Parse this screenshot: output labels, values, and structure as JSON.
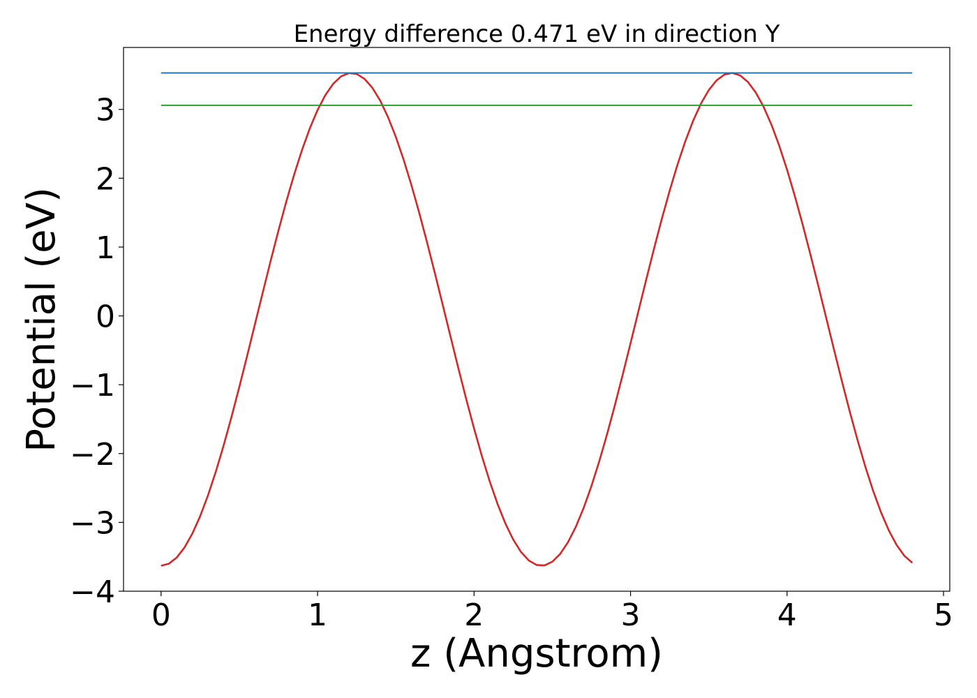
{
  "chart_data": {
    "type": "line",
    "title": "Energy difference 0.471 eV in direction Y",
    "xlabel": "z (Angstrom)",
    "ylabel": "Potential (eV)",
    "xlim": [
      -0.24,
      5.04
    ],
    "ylim": [
      -4.0,
      3.9
    ],
    "xticks": [
      0,
      1,
      2,
      3,
      4,
      5
    ],
    "xtick_labels": [
      "0",
      "1",
      "2",
      "3",
      "4",
      "5"
    ],
    "yticks": [
      -4,
      -3,
      -2,
      -1,
      0,
      1,
      2,
      3
    ],
    "ytick_labels": [
      "−4",
      "−3",
      "−2",
      "−1",
      "0",
      "1",
      "2",
      "3"
    ],
    "grid": false,
    "series": [
      {
        "color": "#d62728",
        "curve": {
          "amplitude": 3.58,
          "offset": -0.05,
          "period": 2.43,
          "phase_min_x": 0.0
        },
        "x_range": [
          0,
          4.8
        ],
        "n_points": 97
      },
      {
        "color": "#1f77b4",
        "x": [
          0,
          4.8
        ],
        "y": [
          3.53,
          3.53
        ]
      },
      {
        "color": "#2ca02c",
        "x": [
          0,
          4.8
        ],
        "y": [
          3.06,
          3.06
        ]
      }
    ]
  }
}
